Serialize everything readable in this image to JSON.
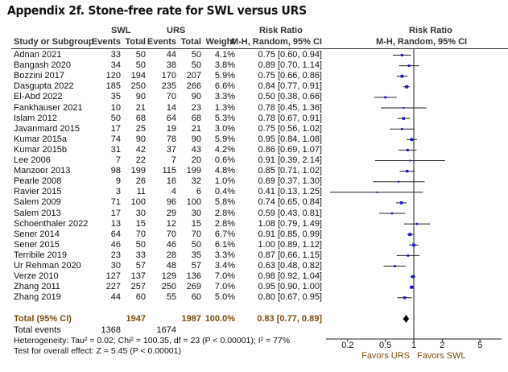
{
  "title": "Appendix 2f. Stone-free rate for SWL versus URS",
  "headers": {
    "swl": "SWL",
    "urs": "URS",
    "study": "Study or Subgroup",
    "events": "Events",
    "total": "Total",
    "weight": "Weight",
    "rr": "Risk Ratio",
    "method": "M-H, Random, 95% CI"
  },
  "chart_data": {
    "type": "forest",
    "title": "Risk Ratio M-H, Random, 95% CI",
    "xscale": "log",
    "xlim": [
      0.15,
      7
    ],
    "xticks": [
      "0.2",
      "0.5",
      "1",
      "2",
      "5"
    ],
    "xtick_values": [
      0.2,
      0.5,
      1,
      2,
      5
    ],
    "xlabel_left": "Favors URS",
    "xlabel_right": "Favors SWL",
    "studies": [
      {
        "name": "Adnan 2021",
        "swl_e": "33",
        "swl_t": "50",
        "urs_e": "44",
        "urs_t": "50",
        "weight": "4.1%",
        "ci_text": "0.75 [0.60, 0.94]",
        "rr": 0.75,
        "lo": 0.6,
        "hi": 0.94
      },
      {
        "name": "Bangash 2020",
        "swl_e": "34",
        "swl_t": "50",
        "urs_e": "38",
        "urs_t": "50",
        "weight": "3.8%",
        "ci_text": "0.89 [0.70, 1.14]",
        "rr": 0.89,
        "lo": 0.7,
        "hi": 1.14
      },
      {
        "name": "Bozzini 2017",
        "swl_e": "120",
        "swl_t": "194",
        "urs_e": "170",
        "urs_t": "207",
        "weight": "5.9%",
        "ci_text": "0.75 [0.66, 0.86]",
        "rr": 0.75,
        "lo": 0.66,
        "hi": 0.86
      },
      {
        "name": "Dasgupta 2022",
        "swl_e": "185",
        "swl_t": "250",
        "urs_e": "235",
        "urs_t": "266",
        "weight": "6.6%",
        "ci_text": "0.84 [0.77, 0.91]",
        "rr": 0.84,
        "lo": 0.77,
        "hi": 0.91
      },
      {
        "name": "El-Abd 2022",
        "swl_e": "35",
        "swl_t": "90",
        "urs_e": "70",
        "urs_t": "90",
        "weight": "3.3%",
        "ci_text": "0.50 [0.38, 0.66]",
        "rr": 0.5,
        "lo": 0.38,
        "hi": 0.66
      },
      {
        "name": "Fankhauser 2021",
        "swl_e": "10",
        "swl_t": "21",
        "urs_e": "14",
        "urs_t": "23",
        "weight": "1.3%",
        "ci_text": "0.78 [0.45, 1.36]",
        "rr": 0.78,
        "lo": 0.45,
        "hi": 1.36
      },
      {
        "name": "Islam 2012",
        "swl_e": "50",
        "swl_t": "68",
        "urs_e": "64",
        "urs_t": "68",
        "weight": "5.3%",
        "ci_text": "0.78 [0.67, 0.91]",
        "rr": 0.78,
        "lo": 0.67,
        "hi": 0.91
      },
      {
        "name": "Javanmard 2015",
        "swl_e": "17",
        "swl_t": "25",
        "urs_e": "19",
        "urs_t": "21",
        "weight": "3.0%",
        "ci_text": "0.75 [0.56, 1.02]",
        "rr": 0.75,
        "lo": 0.56,
        "hi": 1.02
      },
      {
        "name": "Kumar 2015a",
        "swl_e": "74",
        "swl_t": "90",
        "urs_e": "78",
        "urs_t": "90",
        "weight": "5.9%",
        "ci_text": "0.95 [0.84, 1.08]",
        "rr": 0.95,
        "lo": 0.84,
        "hi": 1.08
      },
      {
        "name": "Kumar 2015b",
        "swl_e": "31",
        "swl_t": "42",
        "urs_e": "37",
        "urs_t": "43",
        "weight": "4.2%",
        "ci_text": "0.86 [0.69, 1.07]",
        "rr": 0.86,
        "lo": 0.69,
        "hi": 1.07
      },
      {
        "name": "Lee 2006",
        "swl_e": "7",
        "swl_t": "22",
        "urs_e": "7",
        "urs_t": "20",
        "weight": "0.6%",
        "ci_text": "0.91 [0.39, 2.14]",
        "rr": 0.91,
        "lo": 0.39,
        "hi": 2.14
      },
      {
        "name": "Manzoor 2013",
        "swl_e": "98",
        "swl_t": "199",
        "urs_e": "115",
        "urs_t": "199",
        "weight": "4.8%",
        "ci_text": "0.85 [0.71, 1.02]",
        "rr": 0.85,
        "lo": 0.71,
        "hi": 1.02
      },
      {
        "name": "Pearle 2008",
        "swl_e": "9",
        "swl_t": "26",
        "urs_e": "16",
        "urs_t": "32",
        "weight": "1.0%",
        "ci_text": "0.69 [0.37, 1.30]",
        "rr": 0.69,
        "lo": 0.37,
        "hi": 1.3
      },
      {
        "name": "Ravier 2015",
        "swl_e": "3",
        "swl_t": "11",
        "urs_e": "4",
        "urs_t": "6",
        "weight": "0.4%",
        "ci_text": "0.41 [0.13, 1.25]",
        "rr": 0.41,
        "lo": 0.13,
        "hi": 1.25
      },
      {
        "name": "Salem 2009",
        "swl_e": "71",
        "swl_t": "100",
        "urs_e": "96",
        "urs_t": "100",
        "weight": "5.8%",
        "ci_text": "0.74 [0.65, 0.84]",
        "rr": 0.74,
        "lo": 0.65,
        "hi": 0.84
      },
      {
        "name": "Salem 2013",
        "swl_e": "17",
        "swl_t": "30",
        "urs_e": "29",
        "urs_t": "30",
        "weight": "2.8%",
        "ci_text": "0.59 [0.43, 0.81]",
        "rr": 0.59,
        "lo": 0.43,
        "hi": 0.81
      },
      {
        "name": "Schoenthaler 2022",
        "swl_e": "13",
        "swl_t": "15",
        "urs_e": "12",
        "urs_t": "15",
        "weight": "2.8%",
        "ci_text": "1.08 [0.79, 1.49]",
        "rr": 1.08,
        "lo": 0.79,
        "hi": 1.49
      },
      {
        "name": "Sener 2014",
        "swl_e": "64",
        "swl_t": "70",
        "urs_e": "70",
        "urs_t": "70",
        "weight": "6.7%",
        "ci_text": "0.91 [0.85, 0.99]",
        "rr": 0.91,
        "lo": 0.85,
        "hi": 0.99
      },
      {
        "name": "Sener 2015",
        "swl_e": "46",
        "swl_t": "50",
        "urs_e": "46",
        "urs_t": "50",
        "weight": "6.1%",
        "ci_text": "1.00 [0.89, 1.12]",
        "rr": 1.0,
        "lo": 0.89,
        "hi": 1.12
      },
      {
        "name": "Terribile 2019",
        "swl_e": "23",
        "swl_t": "33",
        "urs_e": "28",
        "urs_t": "35",
        "weight": "3.3%",
        "ci_text": "0.87 [0.66, 1.15]",
        "rr": 0.87,
        "lo": 0.66,
        "hi": 1.15
      },
      {
        "name": "Ur Rehman 2020",
        "swl_e": "30",
        "swl_t": "57",
        "urs_e": "48",
        "urs_t": "57",
        "weight": "3.4%",
        "ci_text": "0.63 [0.48, 0.82]",
        "rr": 0.63,
        "lo": 0.48,
        "hi": 0.82
      },
      {
        "name": "Verze 2010",
        "swl_e": "127",
        "swl_t": "137",
        "urs_e": "129",
        "urs_t": "136",
        "weight": "7.0%",
        "ci_text": "0.98 [0.92, 1.04]",
        "rr": 0.98,
        "lo": 0.92,
        "hi": 1.04
      },
      {
        "name": "Zhang 2011",
        "swl_e": "227",
        "swl_t": "257",
        "urs_e": "250",
        "urs_t": "269",
        "weight": "7.0%",
        "ci_text": "0.95 [0.90, 1.00]",
        "rr": 0.95,
        "lo": 0.9,
        "hi": 1.0
      },
      {
        "name": "Zhang 2019",
        "swl_e": "44",
        "swl_t": "60",
        "urs_e": "55",
        "urs_t": "60",
        "weight": "5.0%",
        "ci_text": "0.80 [0.67, 0.95]",
        "rr": 0.8,
        "lo": 0.67,
        "hi": 0.95
      }
    ],
    "total": {
      "label": "Total (95% CI)",
      "swl_t": "1947",
      "urs_t": "1987",
      "weight": "100.0%",
      "ci_text": "0.83 [0.77, 0.89]",
      "rr": 0.83,
      "lo": 0.77,
      "hi": 0.89
    },
    "total_events": {
      "label": "Total events",
      "swl": "1368",
      "urs": "1674"
    },
    "heterogeneity": "Heterogeneity: Tau² = 0.02; Chi² = 100.35, df = 23 (P < 0.00001); I² = 77%",
    "overall_effect": "Test for overall effect: Z = 5.45 (P < 0.00001)"
  },
  "colors": {
    "square": "#1a1acc",
    "line": "#222",
    "total": "#7a4e12"
  }
}
